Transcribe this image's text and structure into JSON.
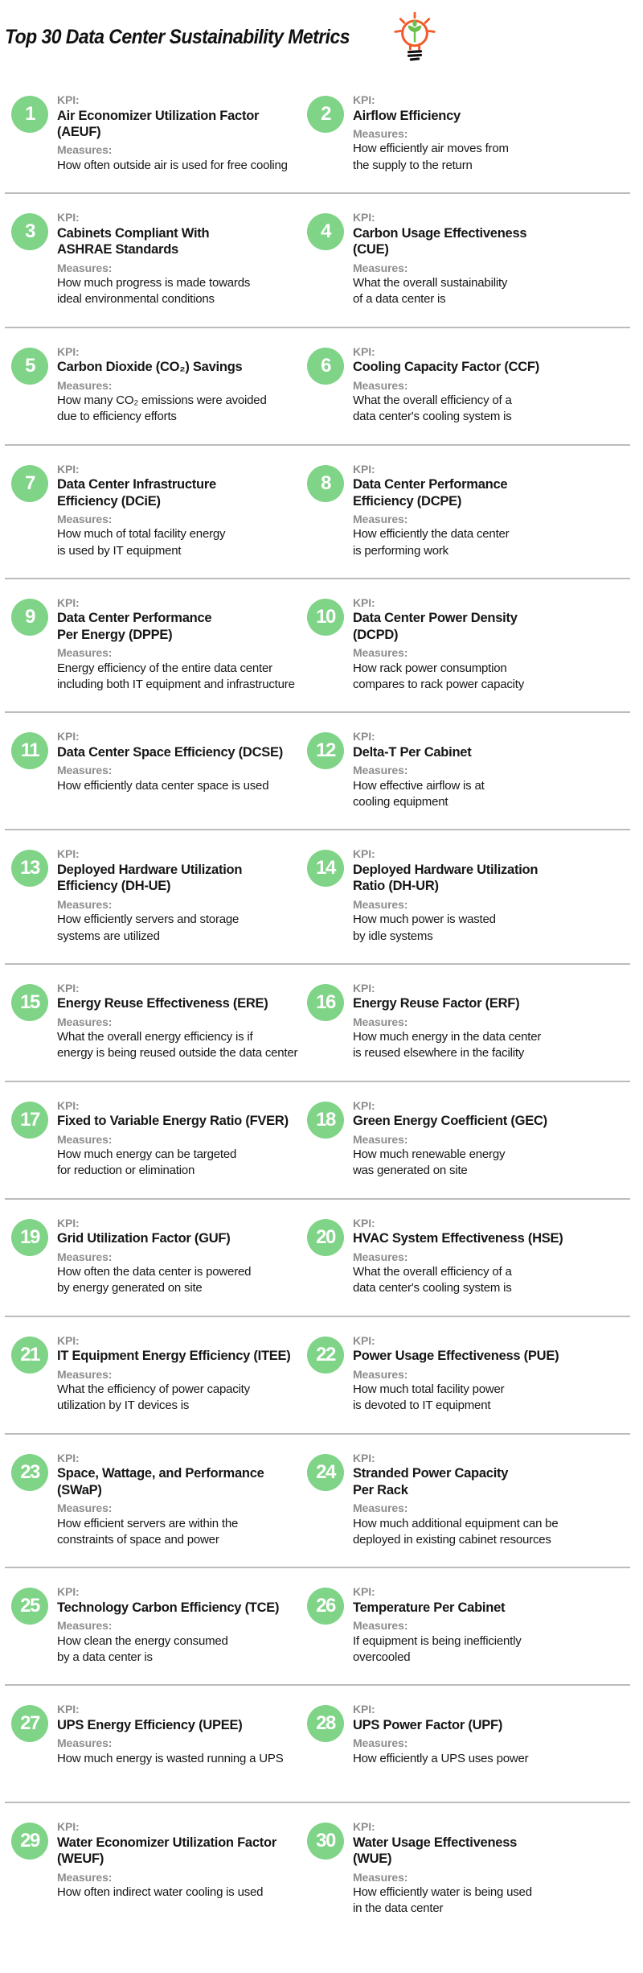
{
  "header": {
    "title": "Top 30 Data Center Sustainability Metrics",
    "icon": "lightbulb-plant-icon"
  },
  "labels": {
    "kpi": "KPI:",
    "measures": "Measures:"
  },
  "colors": {
    "badge_green": "#7fd487",
    "label_gray": "#8d8d8d",
    "text_black": "#161616",
    "divider_gray": "#bcbcbc",
    "bulb_orange": "#f15a29",
    "bulb_sprout_green": "#6abf4b",
    "bulb_base_black": "#111111"
  },
  "items": [
    {
      "number": "1",
      "kpi": "Air Economizer Utilization Factor\n(AEUF)",
      "measures": "How often outside air is used for free cooling"
    },
    {
      "number": "2",
      "kpi": "Airflow Efficiency",
      "measures": "How efficiently air moves from\nthe supply to the return"
    },
    {
      "number": "3",
      "kpi": "Cabinets Compliant With\nASHRAE Standards",
      "measures": "How much progress is made towards\nideal environmental conditions"
    },
    {
      "number": "4",
      "kpi": "Carbon Usage Effectiveness\n(CUE)",
      "measures": "What the overall sustainability\nof a data center is"
    },
    {
      "number": "5",
      "kpi": "Carbon Dioxide (CO₂) Savings",
      "measures": "How many CO₂ emissions were avoided\ndue to efficiency efforts"
    },
    {
      "number": "6",
      "kpi": "Cooling Capacity Factor (CCF)",
      "measures": "What the overall efficiency of a\ndata center's cooling system is"
    },
    {
      "number": "7",
      "kpi": "Data Center Infrastructure\nEfficiency (DCiE)",
      "measures": "How much of total facility energy\nis used by IT equipment"
    },
    {
      "number": "8",
      "kpi": "Data Center Performance\nEfficiency (DCPE)",
      "measures": "How efficiently the data center\nis performing work"
    },
    {
      "number": "9",
      "kpi": "Data Center Performance\nPer Energy (DPPE)",
      "measures": "Energy efficiency of the entire data center\nincluding both IT equipment and infrastructure"
    },
    {
      "number": "10",
      "kpi": "Data Center Power Density\n(DCPD)",
      "measures": "How rack power consumption\ncompares to rack power capacity"
    },
    {
      "number": "11",
      "kpi": "Data Center Space Efficiency (DCSE)",
      "measures": "How efficiently data center space is used"
    },
    {
      "number": "12",
      "kpi": "Delta-T Per Cabinet",
      "measures": "How effective airflow is at\ncooling equipment"
    },
    {
      "number": "13",
      "kpi": "Deployed Hardware Utilization\nEfficiency (DH-UE)",
      "measures": "How efficiently servers and storage\nsystems are utilized"
    },
    {
      "number": "14",
      "kpi": "Deployed Hardware Utilization\nRatio (DH-UR)",
      "measures": "How much power is wasted\nby idle systems"
    },
    {
      "number": "15",
      "kpi": "Energy Reuse Effectiveness (ERE)",
      "measures": "What the overall energy efficiency is if\nenergy is being reused outside the data center"
    },
    {
      "number": "16",
      "kpi": "Energy Reuse Factor (ERF)",
      "measures": "How much energy in the data center\nis reused elsewhere in the facility"
    },
    {
      "number": "17",
      "kpi": "Fixed to Variable Energy Ratio (FVER)",
      "measures": "How much energy can be targeted\nfor reduction or elimination"
    },
    {
      "number": "18",
      "kpi": "Green Energy Coefficient (GEC)",
      "measures": "How much renewable energy\nwas generated on site"
    },
    {
      "number": "19",
      "kpi": "Grid Utilization Factor (GUF)",
      "measures": "How often the data center is powered\nby energy generated on site"
    },
    {
      "number": "20",
      "kpi": "HVAC System Effectiveness (HSE)",
      "measures": "What the overall efficiency of a\ndata center's cooling system is"
    },
    {
      "number": "21",
      "kpi": "IT Equipment Energy Efficiency (ITEE)",
      "measures": "What the efficiency of power capacity\nutilization by IT devices is"
    },
    {
      "number": "22",
      "kpi": "Power Usage Effectiveness (PUE)",
      "measures": "How much total facility power\nis devoted to IT equipment"
    },
    {
      "number": "23",
      "kpi": "Space, Wattage, and Performance\n(SWaP)",
      "measures": "How efficient servers are within the\nconstraints of space and power"
    },
    {
      "number": "24",
      "kpi": "Stranded Power Capacity\nPer Rack",
      "measures": "How much additional equipment can be\ndeployed in existing cabinet resources"
    },
    {
      "number": "25",
      "kpi": "Technology Carbon Efficiency (TCE)",
      "measures": "How clean the energy consumed\nby a data center is"
    },
    {
      "number": "26",
      "kpi": "Temperature Per Cabinet",
      "measures": "If equipment is being inefficiently\novercooled"
    },
    {
      "number": "27",
      "kpi": "UPS Energy Efficiency (UPEE)",
      "measures": "How much energy is wasted running a UPS"
    },
    {
      "number": "28",
      "kpi": "UPS Power Factor (UPF)",
      "measures": "How efficiently a UPS uses power"
    },
    {
      "number": "29",
      "kpi": "Water Economizer Utilization Factor\n(WEUF)",
      "measures": "How often indirect water cooling is used"
    },
    {
      "number": "30",
      "kpi": "Water Usage Effectiveness\n(WUE)",
      "measures": "How efficiently water is being used\nin the data center"
    }
  ]
}
